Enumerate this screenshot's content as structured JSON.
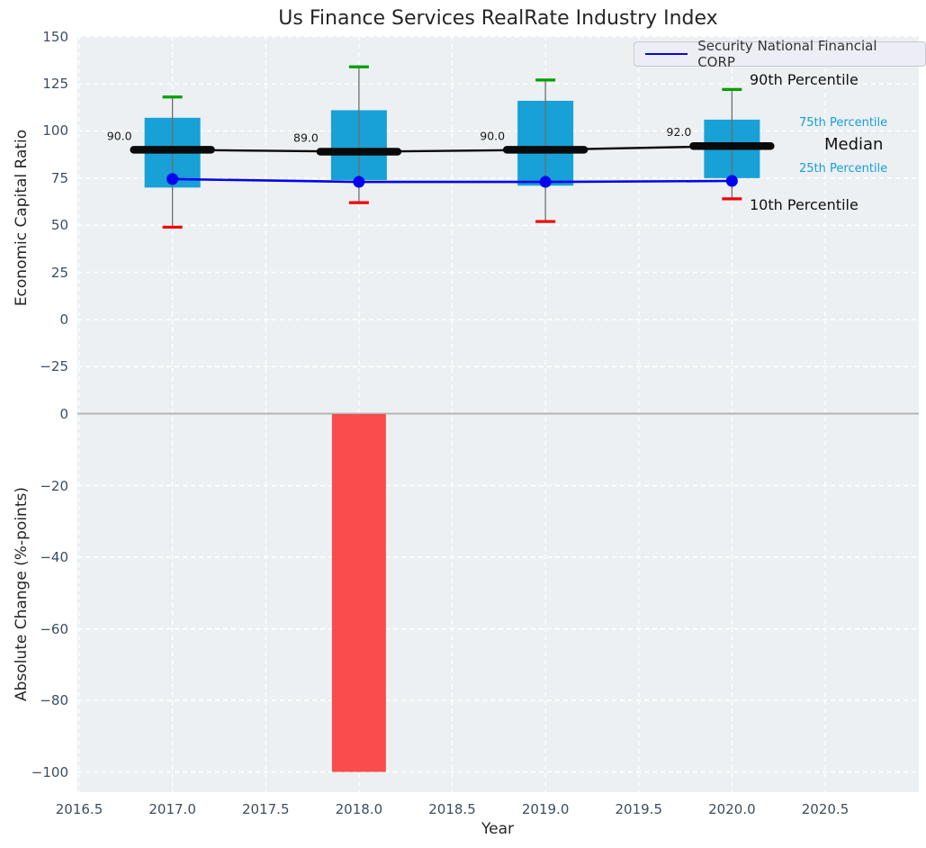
{
  "title": "Us Finance Services RealRate Industry Index",
  "legend": {
    "label": "Security National Financial CORP"
  },
  "annotations": {
    "p90": "90th Percentile",
    "p75": "75th Percentile",
    "median": "Median",
    "p25": "25th Percentile",
    "p10": "10th Percentile"
  },
  "colors": {
    "box": "#0c9cd4",
    "median_line": "#0a0a0a",
    "company_line": "#0404ee",
    "whisker": "#6e6e6e",
    "cap_top": "#00a000",
    "cap_bottom": "#f00000",
    "bar_negative": "#fb3e3e",
    "percentile_label": "#169fd6",
    "axes_bg": "#ecf0f2",
    "grid": "#ffffff",
    "tick_text": "#3d4e60",
    "zero_line": "#b3b3b3",
    "value_label": "#1a1a1a"
  },
  "chart_data": [
    {
      "type": "boxplot",
      "title": "Us Finance Services RealRate Industry Index",
      "xlabel": "Year",
      "ylabel": "Economic Capital Ratio",
      "x": [
        2017,
        2018,
        2019,
        2020
      ],
      "series": [
        {
          "name": "90th Percentile",
          "values": [
            118,
            134,
            127,
            122
          ]
        },
        {
          "name": "75th Percentile",
          "values": [
            107,
            111,
            116,
            106
          ]
        },
        {
          "name": "Median",
          "values": [
            90,
            89,
            90,
            92
          ]
        },
        {
          "name": "25th Percentile",
          "values": [
            70,
            74,
            71,
            75
          ]
        },
        {
          "name": "10th Percentile",
          "values": [
            49,
            62,
            52,
            64
          ]
        },
        {
          "name": "Security National Financial CORP",
          "values": [
            74.5,
            73,
            73,
            73.5
          ]
        }
      ],
      "median_labels": [
        "90.0",
        "89.0",
        "90.0",
        "92.0"
      ],
      "x_tick_values": [
        2016.5,
        2017,
        2017.5,
        2018,
        2018.5,
        2019,
        2019.5,
        2020,
        2020.5
      ],
      "x_tick_labels": [
        "2016.5",
        "2017.0",
        "2017.5",
        "2018.0",
        "2018.5",
        "2019.0",
        "2019.5",
        "2020.0",
        "2020.5"
      ],
      "y_tick_values": [
        150,
        125,
        100,
        75,
        50,
        25,
        0,
        -25
      ],
      "y_tick_labels": [
        "150",
        "125",
        "100",
        "75",
        "50",
        "25",
        "0",
        "−25"
      ],
      "ylim": [
        -42,
        150.5
      ],
      "grid": true,
      "legend_position": "upper right"
    },
    {
      "type": "bar",
      "ylabel": "Absolute Change (%-points)",
      "x": [
        2018
      ],
      "values": [
        -100
      ],
      "y_tick_values": [
        0,
        -20,
        -40,
        -60,
        -80,
        -100
      ],
      "y_tick_labels": [
        "0",
        "−20",
        "−40",
        "−60",
        "−80",
        "−100"
      ],
      "ylim": [
        -105,
        5
      ],
      "grid": true
    }
  ]
}
